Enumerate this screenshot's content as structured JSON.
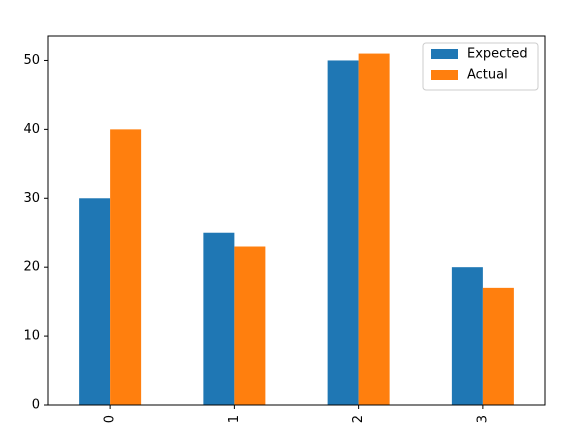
{
  "chart_data": {
    "type": "bar",
    "categories": [
      "0",
      "1",
      "2",
      "3"
    ],
    "series": [
      {
        "name": "Expected",
        "values": [
          30,
          25,
          50,
          20
        ],
        "color": "#1f77b4"
      },
      {
        "name": "Actual",
        "values": [
          40,
          23,
          51,
          17
        ],
        "color": "#ff7f0e"
      }
    ],
    "title": "",
    "xlabel": "",
    "ylabel": "",
    "ylim": [
      0,
      53.55
    ],
    "yticks": [
      "0",
      "10",
      "20",
      "30",
      "40",
      "50"
    ],
    "x_tick_rotation": 90,
    "grid": false,
    "legend_position": "top-right"
  }
}
